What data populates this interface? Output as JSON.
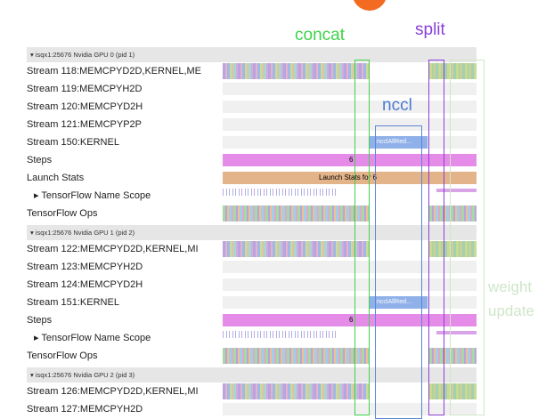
{
  "annotations": {
    "concat": "concat",
    "split": "split",
    "nccl": "nccl",
    "weight_update": [
      "weight",
      "update"
    ]
  },
  "groups": [
    {
      "header": "isqx1:25676 Nvidia GPU 0 (pid 1)",
      "rows": [
        {
          "label": "Stream 118:MEMCPYD2D,KERNEL,ME"
        },
        {
          "label": "Stream 119:MEMCPYH2D"
        },
        {
          "label": "Stream 120:MEMCPYD2H"
        },
        {
          "label": "Stream 121:MEMCPYP2P"
        },
        {
          "label": "Stream 150:KERNEL",
          "bar_label": "ncclAllRed..."
        },
        {
          "label": "Steps",
          "bar_label": "6"
        },
        {
          "label": "Launch Stats",
          "bar_label": "Launch Stats for 6"
        },
        {
          "label": "TensorFlow Name Scope"
        },
        {
          "label": "TensorFlow Ops"
        }
      ]
    },
    {
      "header": "isqx1:25676 Nvidia GPU 1 (pid 2)",
      "rows": [
        {
          "label": "Stream 122:MEMCPYD2D,KERNEL,MI"
        },
        {
          "label": "Stream 123:MEMCPYH2D"
        },
        {
          "label": "Stream 124:MEMCPYD2H"
        },
        {
          "label": "Stream 151:KERNEL",
          "bar_label": "ncclAllRed..."
        },
        {
          "label": "Steps",
          "bar_label": "6"
        },
        {
          "label": "TensorFlow Name Scope"
        },
        {
          "label": "TensorFlow Ops"
        }
      ]
    },
    {
      "header": "isqx1:25676 Nvidia GPU 2 (pid 3)",
      "rows": [
        {
          "label": "Stream 126:MEMCPYD2D,KERNEL,MI"
        },
        {
          "label": "Stream 127:MEMCPYH2D"
        }
      ]
    }
  ]
}
